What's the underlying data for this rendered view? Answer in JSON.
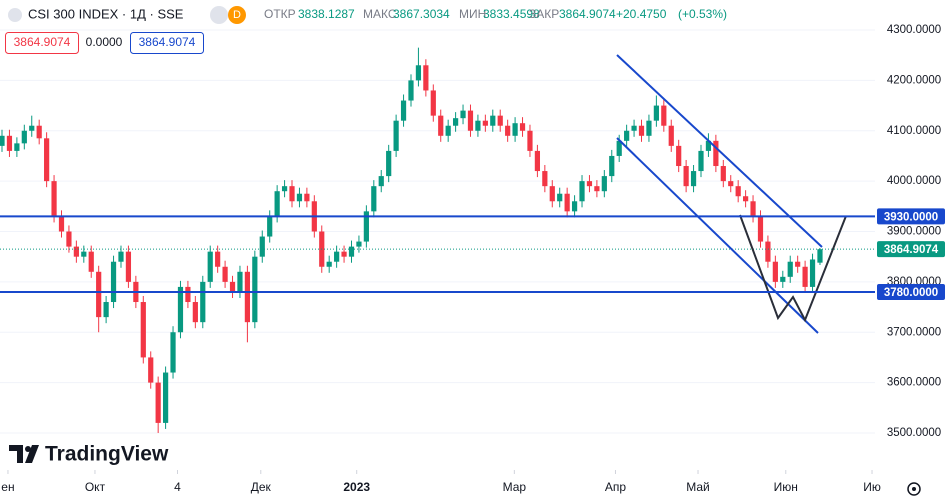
{
  "chart_data": {
    "type": "candlestick",
    "title": "CSI 300 INDEX · 1Д · SSE",
    "interval_badge": "D",
    "ohlc_labels": [
      "ОТКР",
      "МАКС",
      "МИН",
      "ЗАКР"
    ],
    "change": {
      "value": 20.475,
      "label": "+20.4750"
    },
    "change_pct": {
      "value": 0.53,
      "label": "(+0.53%)"
    },
    "bid": 3864.9074,
    "spread": {
      "value": 0,
      "label": "0.0000"
    },
    "ask": 3864.9074,
    "brand": "TradingView",
    "up_color": "#089981",
    "down_color": "#f23645",
    "open": [
      4070,
      4090,
      4060,
      4075,
      4100,
      4110,
      4085,
      4000,
      3930,
      3900,
      3870,
      3850,
      3860,
      3820,
      3730,
      3760,
      3840,
      3860,
      3800,
      3760,
      3650,
      3600,
      3520,
      3620,
      3700,
      3790,
      3760,
      3720,
      3800,
      3860,
      3830,
      3800,
      3780,
      3820,
      3720,
      3850,
      3890,
      3930,
      3980,
      3990,
      3960,
      3975,
      3960,
      3900,
      3830,
      3840,
      3860,
      3850,
      3870,
      3880,
      3940,
      3990,
      4010,
      4060,
      4120,
      4160,
      4200,
      4230,
      4180,
      4130,
      4090,
      4110,
      4125,
      4140,
      4100,
      4120,
      4110,
      4130,
      4110,
      4090,
      4115,
      4100,
      4060,
      4020,
      3990,
      3960,
      3975,
      3940,
      3960,
      4000,
      3990,
      3980,
      4010,
      4050,
      4080,
      4100,
      4110,
      4090,
      4120,
      4150,
      4110,
      4070,
      4030,
      3990,
      4020,
      4060,
      4080,
      4030,
      4000,
      3990,
      3970,
      3960,
      3930,
      3880,
      3840,
      3800,
      3810,
      3840,
      3830,
      3790,
      3838.1287
    ],
    "high": [
      4102,
      4102,
      4087,
      4112,
      4130,
      4122,
      4097,
      4012,
      3942,
      3912,
      3882,
      3872,
      3872,
      3832,
      3772,
      3852,
      3872,
      3872,
      3812,
      3772,
      3662,
      3612,
      3632,
      3712,
      3802,
      3802,
      3772,
      3812,
      3872,
      3872,
      3842,
      3812,
      3832,
      3832,
      3862,
      3902,
      3942,
      3992,
      4002,
      4002,
      3987,
      3987,
      3972,
      3912,
      3852,
      3872,
      3872,
      3882,
      3892,
      3952,
      4002,
      4022,
      4072,
      4132,
      4172,
      4212,
      4265,
      4242,
      4192,
      4142,
      4122,
      4137,
      4152,
      4152,
      4132,
      4132,
      4142,
      4142,
      4122,
      4127,
      4127,
      4112,
      4072,
      4032,
      4002,
      3987,
      3987,
      3972,
      4012,
      4012,
      4002,
      4022,
      4062,
      4092,
      4112,
      4122,
      4122,
      4132,
      4170,
      4162,
      4122,
      4082,
      4042,
      4032,
      4072,
      4095,
      4092,
      4042,
      4012,
      4002,
      3982,
      3972,
      3942,
      3892,
      3852,
      3822,
      3852,
      3852,
      3842,
      3856,
      3867.3034
    ],
    "low": [
      4058,
      4048,
      4048,
      4063,
      4088,
      4073,
      3988,
      3918,
      3888,
      3858,
      3838,
      3838,
      3808,
      3700,
      3718,
      3748,
      3828,
      3788,
      3748,
      3638,
      3588,
      3500,
      3508,
      3608,
      3688,
      3748,
      3708,
      3708,
      3788,
      3818,
      3788,
      3768,
      3768,
      3680,
      3708,
      3838,
      3878,
      3918,
      3968,
      3948,
      3948,
      3948,
      3888,
      3818,
      3818,
      3828,
      3838,
      3838,
      3858,
      3868,
      3928,
      3978,
      3998,
      4048,
      4108,
      4148,
      4188,
      4168,
      4118,
      4078,
      4078,
      4098,
      4113,
      4088,
      4088,
      4098,
      4098,
      4098,
      4078,
      4078,
      4088,
      4048,
      4008,
      3978,
      3948,
      3948,
      3928,
      3928,
      3948,
      3978,
      3968,
      3968,
      3998,
      4038,
      4068,
      4088,
      4078,
      4078,
      4108,
      4098,
      4058,
      4018,
      3978,
      3978,
      4008,
      4048,
      4018,
      3988,
      3978,
      3958,
      3948,
      3918,
      3868,
      3828,
      3788,
      3788,
      3798,
      3818,
      3778,
      3778,
      3833.4598
    ],
    "close": [
      4090,
      4060,
      4075,
      4100,
      4110,
      4085,
      4000,
      3930,
      3900,
      3870,
      3850,
      3860,
      3820,
      3730,
      3760,
      3840,
      3860,
      3800,
      3760,
      3650,
      3600,
      3520,
      3620,
      3700,
      3790,
      3760,
      3720,
      3800,
      3860,
      3830,
      3800,
      3780,
      3820,
      3720,
      3850,
      3890,
      3930,
      3980,
      3990,
      3960,
      3975,
      3960,
      3900,
      3830,
      3840,
      3860,
      3850,
      3870,
      3880,
      3940,
      3990,
      4010,
      4060,
      4120,
      4160,
      4200,
      4230,
      4180,
      4130,
      4090,
      4110,
      4125,
      4140,
      4100,
      4120,
      4110,
      4130,
      4110,
      4090,
      4115,
      4100,
      4060,
      4020,
      3990,
      3960,
      3975,
      3940,
      3960,
      4000,
      3990,
      3980,
      4010,
      4050,
      4080,
      4100,
      4110,
      4090,
      4120,
      4150,
      4110,
      4070,
      4030,
      3990,
      4020,
      4060,
      4080,
      4030,
      4000,
      3990,
      3970,
      3960,
      3930,
      3880,
      3840,
      3800,
      3810,
      3840,
      3830,
      3790,
      3844.4324,
      3864.9074
    ],
    "xlim": [
      -0.27,
      117.4
    ],
    "xticks": [
      {
        "value": 0.8,
        "label": "ен"
      },
      {
        "value": 12.5,
        "label": "Окт"
      },
      {
        "value": 23.6,
        "label": "4"
      },
      {
        "value": 34.8,
        "label": "Дек"
      },
      {
        "value": 47.7,
        "label": "2023"
      },
      {
        "value": 68.9,
        "label": "Мар"
      },
      {
        "value": 82.5,
        "label": "Апр"
      },
      {
        "value": 93.6,
        "label": "Май"
      },
      {
        "value": 105.4,
        "label": "Июн"
      },
      {
        "value": 117,
        "label": "Ию"
      }
    ],
    "ylim": [
      3426.5,
      4359.6
    ],
    "yticks": [
      {
        "value": 3500,
        "label": "3500.0000"
      },
      {
        "value": 3600,
        "label": "3600.0000"
      },
      {
        "value": 3700,
        "label": "3700.0000"
      },
      {
        "value": 3800,
        "label": "3800.0000"
      },
      {
        "value": 3900,
        "label": "3900.0000"
      },
      {
        "value": 4000,
        "label": "4000.0000"
      },
      {
        "value": 4100,
        "label": "4100.0000"
      },
      {
        "value": 4200,
        "label": "4200.0000"
      },
      {
        "value": 4300,
        "label": "4300.0000"
      }
    ],
    "hlines": [
      {
        "value": 3930,
        "label": "3930.0000"
      },
      {
        "value": 3780,
        "label": "3780.0000"
      }
    ],
    "hline_color": "#1848cc"
  }
}
